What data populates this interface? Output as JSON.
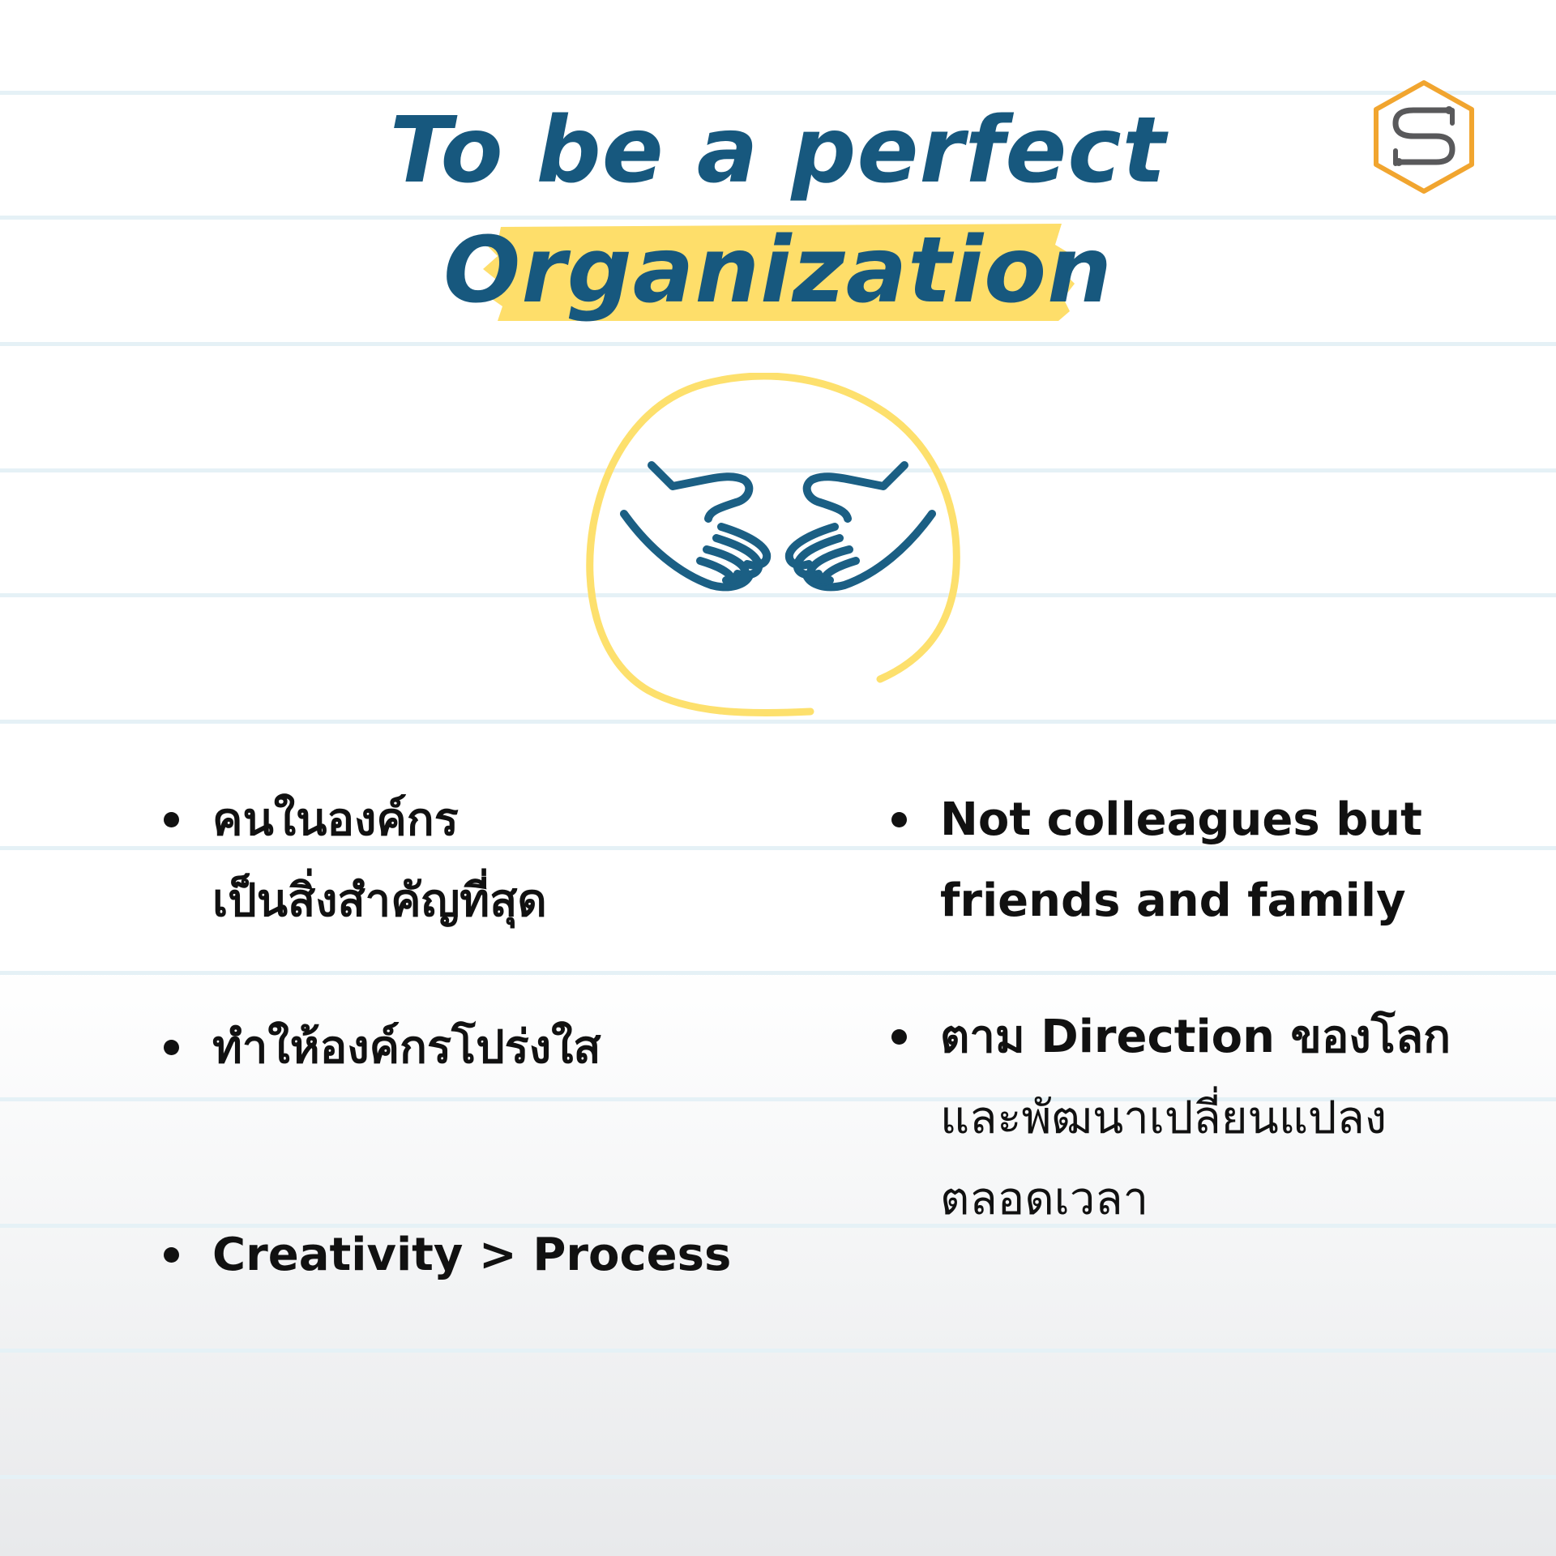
{
  "colors": {
    "title": "#17587e",
    "highlight": "#fede6a",
    "circle": "#fde06d",
    "hands": "#1b5f84",
    "text": "#111111",
    "rule": "#e5f1f6",
    "logo_orange": "#f1a52f",
    "logo_grey": "#59595b"
  },
  "logo": {
    "icon": "hexagon-s-logo"
  },
  "title": {
    "line1": "To be a perfect",
    "line2": "Organization"
  },
  "illustration": {
    "icon": "hands-in-circle-icon"
  },
  "bullets_left": [
    {
      "lines": [
        "คนในองค์กร",
        "เป็นสิ่งสำคัญที่สุด"
      ]
    },
    {
      "lines": [
        "ทำให้องค์กรโปร่งใส"
      ]
    },
    {
      "lines": [
        "Creativity > Process"
      ]
    }
  ],
  "bullets_right": [
    {
      "lines": [
        "Not colleagues but",
        "friends and family"
      ]
    },
    {
      "lines": [
        "ตาม Direction ของโลก",
        "และพัฒนาเปลี่ยนแปลง",
        "ตลอดเวลา"
      ]
    }
  ]
}
